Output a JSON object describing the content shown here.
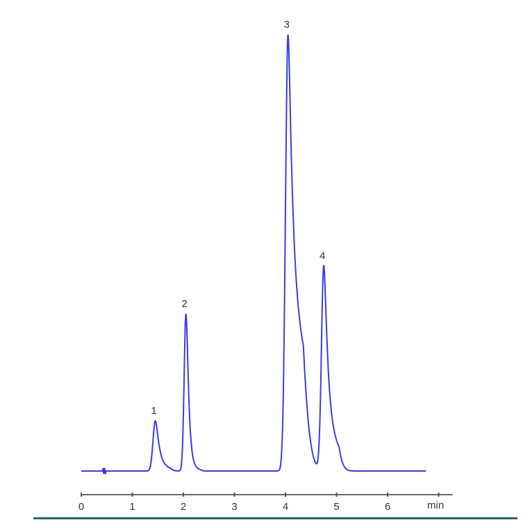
{
  "chart_data": {
    "type": "line",
    "title": "",
    "xlabel": "min",
    "ylabel": "",
    "xlim": [
      0,
      7
    ],
    "x_ticks": [
      "0",
      "1",
      "2",
      "3",
      "4",
      "5",
      "6"
    ],
    "grid": false,
    "y_axis_shown": false,
    "trace_range_min": [
      0,
      6.75
    ],
    "line_color": "#3a3af0",
    "bottom_rule_color": "#1f5f5a",
    "peaks": [
      {
        "label": "1",
        "retention_time_min": 1.45,
        "relative_height": 11.5
      },
      {
        "label": "2",
        "retention_time_min": 2.05,
        "relative_height": 36
      },
      {
        "label": "3",
        "retention_time_min": 4.05,
        "relative_height": 100
      },
      {
        "label": "4",
        "retention_time_min": 4.75,
        "relative_height": 47
      }
    ]
  }
}
